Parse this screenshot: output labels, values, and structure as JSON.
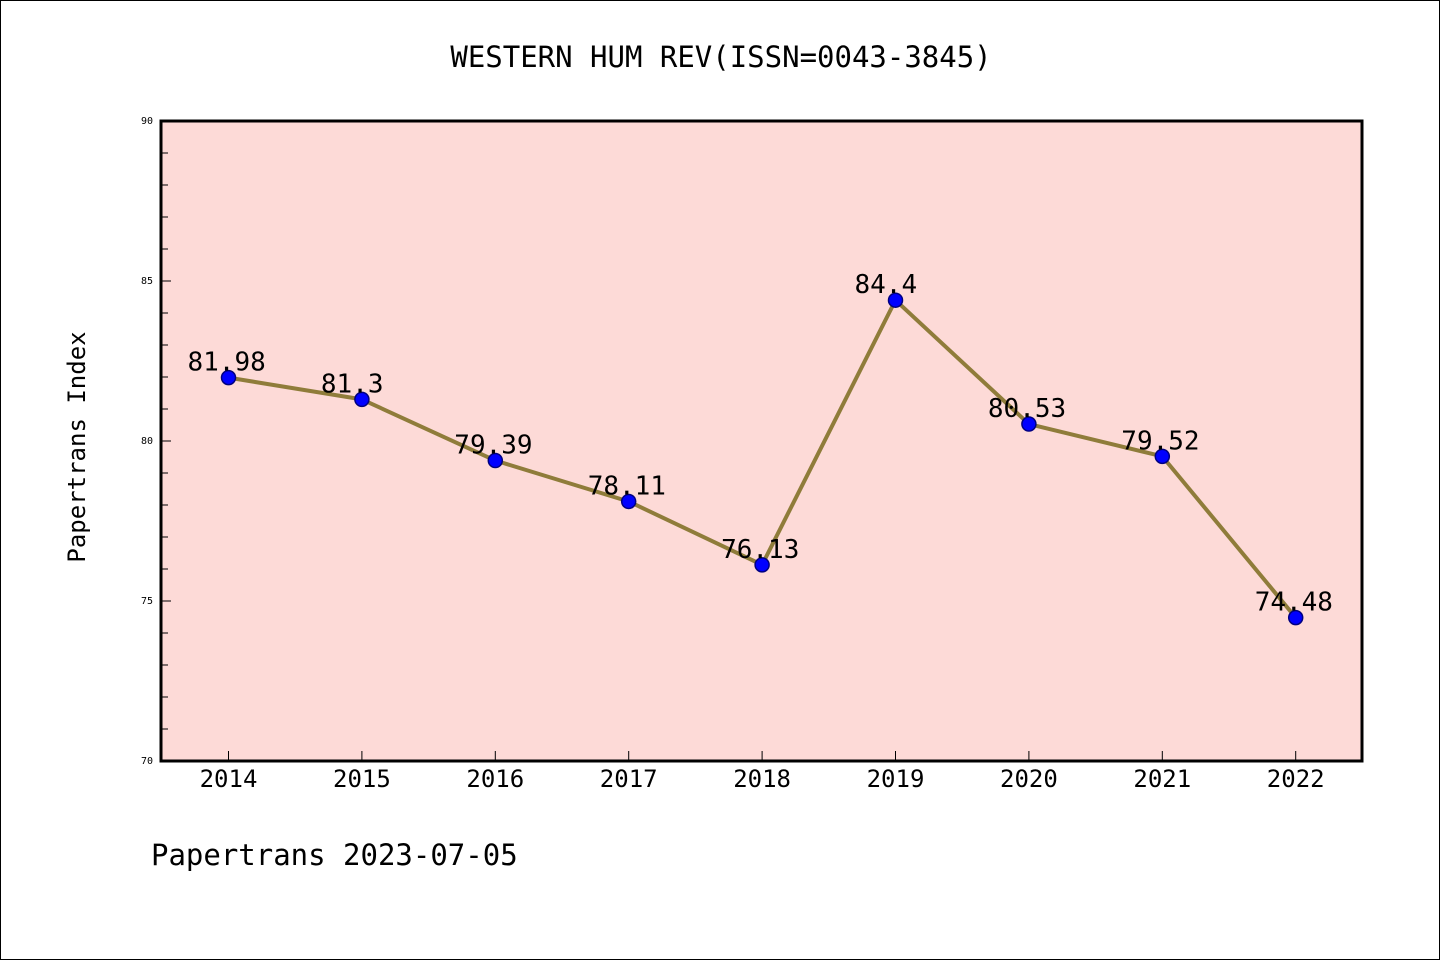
{
  "chart_data": {
    "type": "line",
    "title": "WESTERN HUM REV(ISSN=0043-3845)",
    "ylabel": "Papertrans Index",
    "xlabel": "",
    "x": [
      "2014",
      "2015",
      "2016",
      "2017",
      "2018",
      "2019",
      "2020",
      "2021",
      "2022"
    ],
    "values": [
      81.98,
      81.3,
      79.39,
      78.11,
      76.13,
      84.4,
      80.53,
      79.52,
      74.48
    ],
    "data_labels": [
      "81.98",
      "81.3",
      "79.39",
      "78.11",
      "76.13",
      "84.4",
      "80.53",
      "79.52",
      "74.48"
    ],
    "ylim": [
      70,
      90
    ],
    "y_ticks": [
      "70",
      "75",
      "80",
      "85",
      "90"
    ],
    "grid": false,
    "legend": "none",
    "footer": "Papertrans 2023-07-05",
    "colors": {
      "plot_background": "#fddad7",
      "line": "#8f7c3a",
      "marker": "#0000ff",
      "marker_edge": "#000080"
    }
  }
}
